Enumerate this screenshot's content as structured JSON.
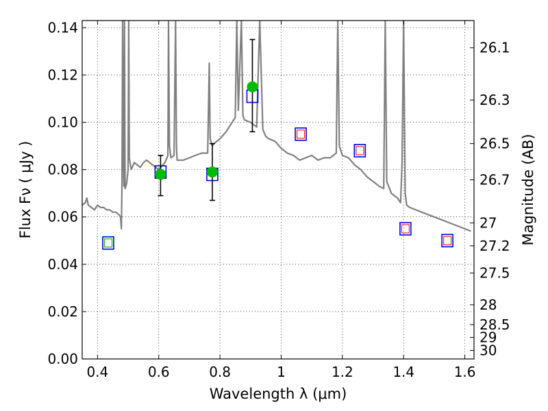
{
  "chart_data": {
    "type": "scatter",
    "title": "",
    "xlabel": "Wavelength  λ (μm)",
    "ylabel": "Flux  Fν  ( μJy )",
    "y2label": "Magnitude (AB)",
    "xlim": [
      0.35,
      1.63
    ],
    "ylim": [
      0.0,
      0.143
    ],
    "grid": true,
    "legend": "none",
    "x_ticks": [
      "0.4",
      "0.6",
      "0.8",
      "1",
      "1.2",
      "1.4",
      "1.6"
    ],
    "y_ticks": [
      "0.00",
      "0.02",
      "0.04",
      "0.06",
      "0.08",
      "0.10",
      "0.12",
      "0.14"
    ],
    "mag_ticks": [
      {
        "label": "26.1",
        "flux": 0.1315
      },
      {
        "label": "26.3",
        "flux": 0.1094
      },
      {
        "label": "26.5",
        "flux": 0.091
      },
      {
        "label": "26.7",
        "flux": 0.0757
      },
      {
        "label": "27",
        "flux": 0.0575
      },
      {
        "label": "27.2",
        "flux": 0.0478
      },
      {
        "label": "27.5",
        "flux": 0.0363
      },
      {
        "label": "28",
        "flux": 0.0229
      },
      {
        "label": "28.5",
        "flux": 0.0145
      },
      {
        "label": "29",
        "flux": 0.0091
      },
      {
        "label": "30",
        "flux": 0.0036
      }
    ],
    "colors": {
      "model_spectrum": "#808080",
      "observed": "#00bb00",
      "model_box": "#0000dd",
      "upper_limit": "#ee2222",
      "errorbar": "#000000"
    },
    "series": [
      {
        "name": "",
        "kind": "spectrum",
        "x": [
          0.35,
          0.36,
          0.365,
          0.37,
          0.38,
          0.39,
          0.4,
          0.41,
          0.42,
          0.43,
          0.44,
          0.45,
          0.46,
          0.47,
          0.475,
          0.478,
          0.48,
          0.482,
          0.484,
          0.486,
          0.488,
          0.49,
          0.495,
          0.5,
          0.502,
          0.504,
          0.51,
          0.52,
          0.53,
          0.54,
          0.55,
          0.56,
          0.58,
          0.6,
          0.62,
          0.63,
          0.632,
          0.635,
          0.64,
          0.65,
          0.655,
          0.658,
          0.66,
          0.67,
          0.68,
          0.7,
          0.72,
          0.74,
          0.76,
          0.765,
          0.768,
          0.775,
          0.78,
          0.8,
          0.82,
          0.84,
          0.85,
          0.855,
          0.86,
          0.87,
          0.875,
          0.88,
          0.9,
          0.92,
          0.93,
          0.94,
          0.95,
          0.96,
          0.98,
          1.0,
          1.02,
          1.04,
          1.06,
          1.08,
          1.1,
          1.12,
          1.14,
          1.16,
          1.18,
          1.185,
          1.19,
          1.2,
          1.22,
          1.24,
          1.26,
          1.28,
          1.3,
          1.32,
          1.335,
          1.34,
          1.345,
          1.36,
          1.38,
          1.39,
          1.395,
          1.4,
          1.405,
          1.41,
          1.42,
          1.44,
          1.46,
          1.48,
          1.5,
          1.52,
          1.54,
          1.56,
          1.58,
          1.6,
          1.62
        ],
        "y": [
          0.065,
          0.066,
          0.068,
          0.065,
          0.064,
          0.063,
          0.065,
          0.064,
          0.064,
          0.063,
          0.063,
          0.062,
          0.062,
          0.061,
          0.06,
          0.055,
          0.075,
          0.143,
          0.09,
          0.073,
          0.143,
          0.072,
          0.074,
          0.08,
          0.143,
          0.085,
          0.08,
          0.083,
          0.082,
          0.081,
          0.083,
          0.084,
          0.082,
          0.08,
          0.083,
          0.086,
          0.143,
          0.09,
          0.085,
          0.086,
          0.143,
          0.09,
          0.084,
          0.084,
          0.084,
          0.085,
          0.086,
          0.087,
          0.087,
          0.125,
          0.093,
          0.09,
          0.091,
          0.093,
          0.096,
          0.1,
          0.102,
          0.143,
          0.105,
          0.143,
          0.103,
          0.101,
          0.1,
          0.098,
          0.143,
          0.097,
          0.094,
          0.093,
          0.092,
          0.089,
          0.087,
          0.086,
          0.084,
          0.085,
          0.086,
          0.084,
          0.085,
          0.085,
          0.087,
          0.143,
          0.09,
          0.086,
          0.085,
          0.082,
          0.08,
          0.077,
          0.075,
          0.073,
          0.072,
          0.143,
          0.075,
          0.07,
          0.068,
          0.066,
          0.083,
          0.143,
          0.07,
          0.065,
          0.064,
          0.063,
          0.062,
          0.061,
          0.06,
          0.059,
          0.058,
          0.057,
          0.056,
          0.055,
          0.054
        ]
      },
      {
        "name": "",
        "kind": "model_boxes",
        "x": [
          0.435,
          0.606,
          0.775,
          0.906,
          1.064,
          1.257,
          1.406,
          1.543
        ],
        "y": [
          0.049,
          0.079,
          0.078,
          0.111,
          0.095,
          0.088,
          0.055,
          0.05
        ],
        "inner": [
          "green",
          "none",
          "none",
          "none",
          "red",
          "red",
          "red",
          "red"
        ]
      },
      {
        "name": "",
        "kind": "observed",
        "x": [
          0.606,
          0.775,
          0.906
        ],
        "y": [
          0.078,
          0.079,
          0.115
        ],
        "err_low": [
          0.069,
          0.067,
          0.096
        ],
        "err_high": [
          0.086,
          0.091,
          0.135
        ]
      }
    ]
  }
}
